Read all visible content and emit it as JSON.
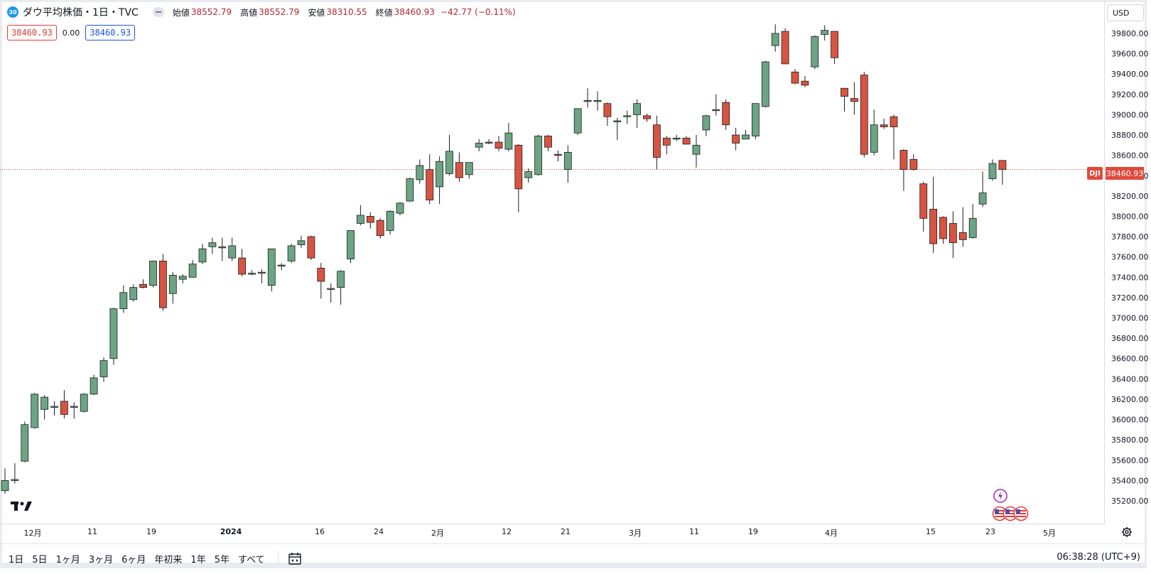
{
  "legend": {
    "badge": "30",
    "title": "ダウ平均株価・1日・TVC",
    "open_label": "始値",
    "open_value": "38552.79",
    "high_label": "高値",
    "high_value": "38552.79",
    "low_label": "安値",
    "low_value": "38310.55",
    "close_label": "終値",
    "close_value": "38460.93",
    "change": "−42.77 (−0.11%)"
  },
  "indicator": {
    "bid": "38460.93",
    "spread": "0.00",
    "ask": "38460.93"
  },
  "currency": "USD",
  "last_price": {
    "symbol": "DJI",
    "value": "38460.93"
  },
  "time_scale": {
    "labels": [
      "12月",
      "11",
      "19",
      "2024",
      "16",
      "24",
      "2月",
      "12",
      "21",
      "3月",
      "11",
      "19",
      "4月",
      "15",
      "23",
      "5月"
    ]
  },
  "range_buttons": [
    "1日",
    "5日",
    "1ヶ月",
    "3ヶ月",
    "6ヶ月",
    "年初来",
    "1年",
    "5年",
    "すべて"
  ],
  "clock": "06:38:28 (UTC+9)",
  "colors": {
    "up": "#6ba583",
    "down": "#d75442",
    "wick": "#1d1d1d",
    "last_price_line": "#e04a3a"
  },
  "icons": {
    "settings": "gear-icon",
    "date_range": "calendar-range-icon",
    "logo": "tradingview-logo",
    "event": "lightning-icon",
    "flags": "us-flag-icon"
  },
  "chart_data": {
    "type": "candlestick",
    "ylim": [
      35050,
      39980
    ],
    "y_ticks": [
      35200,
      35400,
      35600,
      35800,
      36000,
      36200,
      36400,
      36600,
      36800,
      37000,
      37200,
      37400,
      37600,
      37800,
      38000,
      38200,
      38400,
      38600,
      38800,
      39000,
      39200,
      39400,
      39600,
      39800
    ],
    "y_tick_labels": [
      "35200.00",
      "35400.00",
      "35600.00",
      "35800.00",
      "36000.00",
      "36200.00",
      "36400.00",
      "36600.00",
      "36800.00",
      "37000.00",
      "37200.00",
      "37400.00",
      "37600.00",
      "37800.00",
      "38000.00",
      "38200.00",
      "38400.00",
      "38600.00",
      "38800.00",
      "39000.00",
      "39200.00",
      "39400.00",
      "39600.00",
      "39800.00"
    ],
    "last_price": 38460.93,
    "candles": [
      [
        35300,
        35520,
        35270,
        35400
      ],
      [
        35410,
        35570,
        35370,
        35410
      ],
      [
        35590,
        35980,
        35580,
        35950
      ],
      [
        35920,
        36260,
        35910,
        36250
      ],
      [
        36100,
        36240,
        36000,
        36220
      ],
      [
        36130,
        36180,
        36040,
        36130
      ],
      [
        36180,
        36290,
        36010,
        36050
      ],
      [
        36130,
        36170,
        36010,
        36130
      ],
      [
        36080,
        36260,
        36070,
        36250
      ],
      [
        36250,
        36440,
        36240,
        36410
      ],
      [
        36420,
        36610,
        36370,
        36580
      ],
      [
        36600,
        37100,
        36540,
        37090
      ],
      [
        37090,
        37320,
        37050,
        37250
      ],
      [
        37180,
        37330,
        37160,
        37300
      ],
      [
        37330,
        37380,
        37290,
        37300
      ],
      [
        37320,
        37560,
        37300,
        37560
      ],
      [
        37560,
        37630,
        37070,
        37100
      ],
      [
        37240,
        37450,
        37140,
        37420
      ],
      [
        37380,
        37430,
        37340,
        37410
      ],
      [
        37400,
        37570,
        37400,
        37530
      ],
      [
        37550,
        37730,
        37530,
        37680
      ],
      [
        37700,
        37790,
        37630,
        37740
      ],
      [
        37700,
        37790,
        37560,
        37700
      ],
      [
        37590,
        37790,
        37560,
        37710
      ],
      [
        37590,
        37680,
        37410,
        37430
      ],
      [
        37430,
        37470,
        37420,
        37440
      ],
      [
        37450,
        37480,
        37340,
        37450
      ],
      [
        37320,
        37680,
        37260,
        37680
      ],
      [
        37510,
        37540,
        37470,
        37520
      ],
      [
        37560,
        37730,
        37540,
        37710
      ],
      [
        37720,
        37810,
        37690,
        37760
      ],
      [
        37800,
        37810,
        37570,
        37590
      ],
      [
        37490,
        37540,
        37190,
        37360
      ],
      [
        37290,
        37340,
        37150,
        37290
      ],
      [
        37300,
        37470,
        37130,
        37460
      ],
      [
        37580,
        37830,
        37540,
        37860
      ],
      [
        37930,
        38110,
        37910,
        38010
      ],
      [
        38000,
        38040,
        37880,
        37940
      ],
      [
        37960,
        37980,
        37780,
        37810
      ],
      [
        37860,
        38060,
        37820,
        38050
      ],
      [
        38030,
        38140,
        38010,
        38130
      ],
      [
        38150,
        38380,
        38140,
        38370
      ],
      [
        38360,
        38560,
        38320,
        38500
      ],
      [
        38460,
        38610,
        38120,
        38160
      ],
      [
        38290,
        38590,
        38120,
        38540
      ],
      [
        38420,
        38800,
        38400,
        38640
      ],
      [
        38530,
        38630,
        38340,
        38380
      ],
      [
        38410,
        38520,
        38370,
        38530
      ],
      [
        38680,
        38760,
        38640,
        38720
      ],
      [
        38720,
        38760,
        38710,
        38730
      ],
      [
        38730,
        38790,
        38640,
        38670
      ],
      [
        38660,
        38920,
        38640,
        38820
      ],
      [
        38700,
        38710,
        38040,
        38270
      ],
      [
        38380,
        38470,
        38330,
        38440
      ],
      [
        38410,
        38800,
        38400,
        38790
      ],
      [
        38790,
        38800,
        38640,
        38680
      ],
      [
        38610,
        38650,
        38540,
        38600
      ],
      [
        38460,
        38700,
        38330,
        38630
      ],
      [
        38820,
        39060,
        38800,
        39060
      ],
      [
        39130,
        39260,
        39070,
        39140
      ],
      [
        39140,
        39230,
        39040,
        39140
      ],
      [
        39110,
        39120,
        38890,
        38980
      ],
      [
        38940,
        38970,
        38750,
        38940
      ],
      [
        38990,
        39040,
        38910,
        38990
      ],
      [
        39000,
        39150,
        38870,
        39110
      ],
      [
        38990,
        39010,
        38930,
        38960
      ],
      [
        38900,
        38990,
        38460,
        38580
      ],
      [
        38770,
        38790,
        38610,
        38700
      ],
      [
        38760,
        38800,
        38740,
        38770
      ],
      [
        38770,
        38790,
        38710,
        38710
      ],
      [
        38610,
        38800,
        38480,
        38700
      ],
      [
        38850,
        39000,
        38790,
        38990
      ],
      [
        39040,
        39200,
        38990,
        39050
      ],
      [
        39120,
        39150,
        38850,
        38900
      ],
      [
        38800,
        38870,
        38650,
        38720
      ],
      [
        38760,
        38850,
        38760,
        38800
      ],
      [
        38790,
        39110,
        38760,
        39110
      ],
      [
        39080,
        39530,
        39070,
        39520
      ],
      [
        39680,
        39890,
        39620,
        39800
      ],
      [
        39820,
        39850,
        39500,
        39500
      ],
      [
        39420,
        39450,
        39300,
        39310
      ],
      [
        39330,
        39380,
        39270,
        39290
      ],
      [
        39470,
        39780,
        39450,
        39770
      ],
      [
        39790,
        39880,
        39730,
        39830
      ],
      [
        39820,
        39820,
        39500,
        39560
      ],
      [
        39260,
        39250,
        39030,
        39180
      ],
      [
        39160,
        39320,
        39000,
        39130
      ],
      [
        39390,
        39420,
        38580,
        38610
      ],
      [
        38630,
        39050,
        38600,
        38900
      ],
      [
        38900,
        38960,
        38860,
        38880
      ],
      [
        38980,
        39000,
        38560,
        38880
      ],
      [
        38650,
        38660,
        38250,
        38460
      ],
      [
        38560,
        38610,
        38450,
        38460
      ],
      [
        38320,
        38340,
        37850,
        37980
      ],
      [
        38070,
        38390,
        37640,
        37730
      ],
      [
        37990,
        38000,
        37730,
        37780
      ],
      [
        37930,
        38050,
        37590,
        37740
      ],
      [
        37840,
        38090,
        37700,
        37770
      ],
      [
        37790,
        38120,
        37780,
        37980
      ],
      [
        38120,
        38440,
        38090,
        38230
      ],
      [
        38370,
        38560,
        38350,
        38520
      ],
      [
        38550,
        38550,
        38310,
        38460
      ]
    ]
  }
}
